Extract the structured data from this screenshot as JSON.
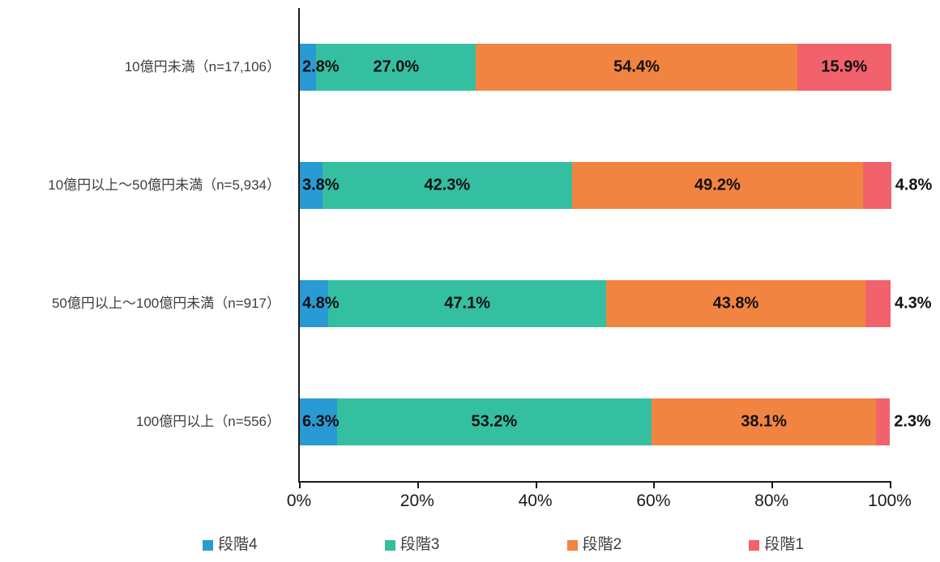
{
  "chart_data": {
    "type": "bar",
    "variant": "horizontal-stacked",
    "title": "",
    "xlabel": "",
    "ylabel": "",
    "xlim": [
      0,
      100
    ],
    "x_ticks": [
      "0%",
      "20%",
      "40%",
      "60%",
      "80%",
      "100%"
    ],
    "x_tick_values": [
      0,
      20,
      40,
      60,
      80,
      100
    ],
    "grid": false,
    "legend_position": "bottom",
    "categories": [
      "10億円未満（n=17,106）",
      "10億円以上～50億円未満（n=5,934）",
      "50億円以上～100億円未満（n=917）",
      "100億円以上（n=556）"
    ],
    "series": [
      {
        "name": "段階4",
        "color": "#2A9AD4",
        "values": [
          2.8,
          3.8,
          4.8,
          6.3
        ]
      },
      {
        "name": "段階3",
        "color": "#35BFA1",
        "values": [
          27.0,
          42.3,
          47.1,
          53.2
        ]
      },
      {
        "name": "段階2",
        "color": "#F28442",
        "values": [
          54.4,
          49.2,
          43.8,
          38.1
        ]
      },
      {
        "name": "段階1",
        "color": "#F2626C",
        "values": [
          15.9,
          4.8,
          4.3,
          2.3
        ]
      }
    ],
    "value_suffix": "%"
  }
}
